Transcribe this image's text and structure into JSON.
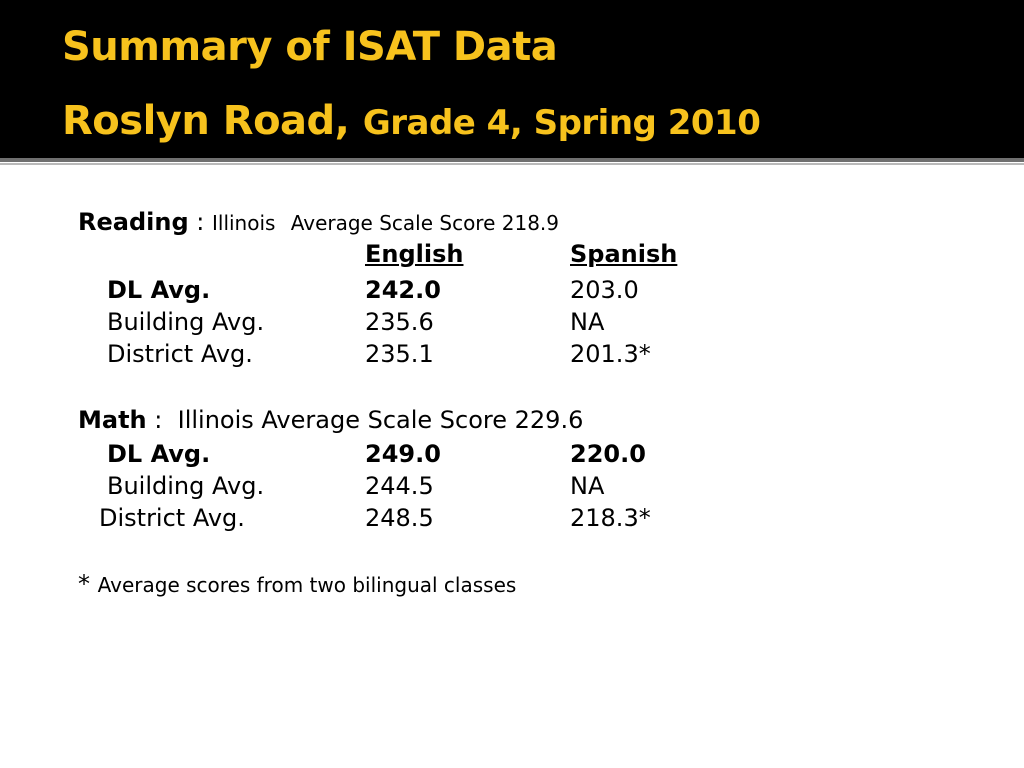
{
  "title": {
    "line1": "Summary of ISAT Data",
    "line2_main": "Roslyn Road,",
    "line2_sub": "Grade 4, Spring 2010"
  },
  "reading": {
    "label": "Reading",
    "separator": " :",
    "state": "Illinois",
    "state_avg": "Average Scale Score 218.9",
    "col_english": "English",
    "col_spanish": "Spanish",
    "rows": [
      {
        "label": "DL Avg.",
        "english": "242.0",
        "spanish": "203.0"
      },
      {
        "label": "Building Avg.",
        "english": "235.6",
        "spanish": "NA"
      },
      {
        "label": "District Avg.",
        "english": "235.1",
        "spanish": "201.3*"
      }
    ]
  },
  "math": {
    "label": "Math",
    "separator": " :",
    "state_avg": "Illinois Average Scale Score 229.6",
    "rows": [
      {
        "label": "DL Avg.",
        "english": "249.0",
        "spanish": "220.0"
      },
      {
        "label": "Building Avg.",
        "english": "244.5",
        "spanish": "NA"
      },
      {
        "label": "District Avg.",
        "english": "248.5",
        "spanish": "218.3*"
      }
    ]
  },
  "footnote": {
    "marker": "*",
    "text": "Average scores from two bilingual classes"
  }
}
